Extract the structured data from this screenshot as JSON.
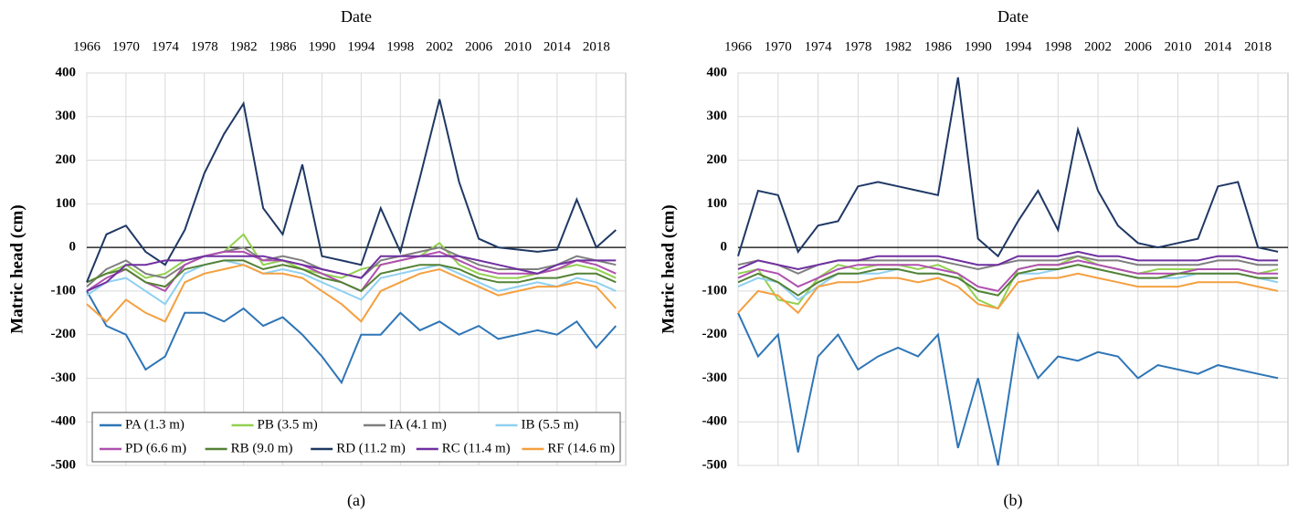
{
  "chart_data": [
    {
      "type": "line",
      "xlabel": "Date",
      "ylabel": "Matric head (cm)",
      "caption": "(a)",
      "legend": "lower center",
      "grid": true,
      "x": [
        1966,
        1968,
        1970,
        1972,
        1974,
        1976,
        1978,
        1980,
        1982,
        1984,
        1986,
        1988,
        1990,
        1992,
        1994,
        1996,
        1998,
        2000,
        2002,
        2004,
        2006,
        2008,
        2010,
        2012,
        2014,
        2016,
        2018,
        2020
      ],
      "xlim": [
        1966,
        2021
      ],
      "xticks": [
        1966,
        1970,
        1974,
        1978,
        1982,
        1986,
        1990,
        1994,
        1998,
        2002,
        2006,
        2010,
        2014,
        2018
      ],
      "ylim": [
        -500,
        400
      ],
      "yticks": [
        -500,
        -400,
        -300,
        -200,
        -100,
        0,
        100,
        200,
        300,
        400
      ],
      "series": [
        {
          "name": "PA (1.3 m)",
          "color": "#2e75b6",
          "values": [
            -100,
            -180,
            -200,
            -280,
            -250,
            -150,
            -150,
            -170,
            -140,
            -180,
            -160,
            -200,
            -250,
            -310,
            -200,
            -200,
            -150,
            -190,
            -170,
            -200,
            -180,
            -210,
            -200,
            -190,
            -200,
            -170,
            -230,
            -180
          ]
        },
        {
          "name": "PB (3.5 m)",
          "color": "#92d050",
          "values": [
            -80,
            -60,
            -40,
            -70,
            -60,
            -30,
            -20,
            -10,
            30,
            -40,
            -30,
            -50,
            -60,
            -70,
            -50,
            -40,
            -30,
            -20,
            10,
            -40,
            -60,
            -70,
            -70,
            -60,
            -50,
            -40,
            -50,
            -70
          ]
        },
        {
          "name": "IA (4.1 m)",
          "color": "#7f7f7f",
          "values": [
            -90,
            -50,
            -30,
            -60,
            -70,
            -40,
            -20,
            -10,
            0,
            -30,
            -20,
            -30,
            -50,
            -60,
            -70,
            -30,
            -20,
            -10,
            0,
            -20,
            -40,
            -50,
            -50,
            -50,
            -40,
            -20,
            -30,
            -40
          ]
        },
        {
          "name": "IB (5.5 m)",
          "color": "#8fd0f0",
          "values": [
            -110,
            -80,
            -70,
            -100,
            -130,
            -60,
            -40,
            -30,
            -40,
            -60,
            -50,
            -60,
            -80,
            -100,
            -120,
            -70,
            -60,
            -50,
            -40,
            -60,
            -80,
            -100,
            -90,
            -80,
            -90,
            -70,
            -80,
            -100
          ]
        },
        {
          "name": "PD (6.6 m)",
          "color": "#b050b0",
          "values": [
            -100,
            -70,
            -50,
            -80,
            -100,
            -40,
            -20,
            -10,
            -10,
            -30,
            -30,
            -40,
            -60,
            -80,
            -100,
            -40,
            -30,
            -20,
            -10,
            -30,
            -50,
            -60,
            -60,
            -60,
            -50,
            -30,
            -40,
            -60
          ]
        },
        {
          "name": "RB (9.0 m)",
          "color": "#548235",
          "values": [
            -80,
            -60,
            -50,
            -80,
            -90,
            -50,
            -40,
            -30,
            -30,
            -50,
            -40,
            -50,
            -70,
            -80,
            -100,
            -60,
            -50,
            -40,
            -40,
            -50,
            -70,
            -80,
            -80,
            -70,
            -70,
            -60,
            -60,
            -80
          ]
        },
        {
          "name": "RD (11.2 m)",
          "color": "#1f3864",
          "values": [
            -80,
            30,
            50,
            -10,
            -40,
            40,
            170,
            260,
            330,
            90,
            30,
            190,
            -20,
            -30,
            -40,
            90,
            -10,
            160,
            340,
            150,
            20,
            0,
            -5,
            -10,
            -5,
            110,
            0,
            40
          ]
        },
        {
          "name": "RC (11.4 m)",
          "color": "#7030a0",
          "values": [
            -100,
            -80,
            -40,
            -40,
            -30,
            -30,
            -20,
            -20,
            -20,
            -20,
            -30,
            -40,
            -50,
            -60,
            -70,
            -20,
            -20,
            -20,
            -20,
            -20,
            -30,
            -40,
            -50,
            -60,
            -40,
            -30,
            -30,
            -30
          ]
        },
        {
          "name": "RF (14.6 m)",
          "color": "#f4a040",
          "values": [
            -130,
            -170,
            -120,
            -150,
            -170,
            -80,
            -60,
            -50,
            -40,
            -60,
            -60,
            -70,
            -100,
            -130,
            -170,
            -100,
            -80,
            -60,
            -50,
            -70,
            -90,
            -110,
            -100,
            -90,
            -90,
            -80,
            -90,
            -140
          ]
        }
      ]
    },
    {
      "type": "line",
      "xlabel": "Date",
      "ylabel": "Matric head (cm)",
      "caption": "(b)",
      "grid": true,
      "x": [
        1966,
        1968,
        1970,
        1972,
        1974,
        1976,
        1978,
        1980,
        1982,
        1984,
        1986,
        1988,
        1990,
        1992,
        1994,
        1996,
        1998,
        2000,
        2002,
        2004,
        2006,
        2008,
        2010,
        2012,
        2014,
        2016,
        2018,
        2020
      ],
      "xlim": [
        1966,
        2021
      ],
      "xticks": [
        1966,
        1970,
        1974,
        1978,
        1982,
        1986,
        1990,
        1994,
        1998,
        2002,
        2006,
        2010,
        2014,
        2018
      ],
      "ylim": [
        -500,
        400
      ],
      "yticks": [
        -500,
        -400,
        -300,
        -200,
        -100,
        0,
        100,
        200,
        300,
        400
      ],
      "series": [
        {
          "color": "#2e75b6",
          "values": [
            -150,
            -250,
            -200,
            -470,
            -250,
            -200,
            -280,
            -250,
            -230,
            -250,
            -200,
            -460,
            -300,
            -500,
            -200,
            -300,
            -250,
            -260,
            -240,
            -250,
            -300,
            -270,
            -280,
            -290,
            -270,
            -280,
            -290,
            -300
          ]
        },
        {
          "color": "#92d050",
          "values": [
            -60,
            -50,
            -120,
            -130,
            -70,
            -40,
            -50,
            -40,
            -40,
            -50,
            -40,
            -60,
            -120,
            -140,
            -50,
            -40,
            -40,
            -20,
            -40,
            -50,
            -60,
            -50,
            -50,
            -50,
            -50,
            -50,
            -60,
            -50
          ]
        },
        {
          "color": "#7f7f7f",
          "values": [
            -40,
            -30,
            -40,
            -60,
            -40,
            -30,
            -30,
            -30,
            -30,
            -30,
            -30,
            -40,
            -50,
            -40,
            -30,
            -30,
            -30,
            -20,
            -30,
            -30,
            -40,
            -40,
            -40,
            -40,
            -30,
            -30,
            -40,
            -40
          ]
        },
        {
          "color": "#8fd0f0",
          "values": [
            -90,
            -70,
            -80,
            -120,
            -90,
            -60,
            -60,
            -60,
            -50,
            -60,
            -60,
            -70,
            -100,
            -110,
            -60,
            -60,
            -50,
            -40,
            -50,
            -60,
            -70,
            -70,
            -70,
            -60,
            -60,
            -60,
            -70,
            -80
          ]
        },
        {
          "color": "#b050b0",
          "values": [
            -70,
            -50,
            -60,
            -90,
            -70,
            -50,
            -40,
            -40,
            -40,
            -40,
            -50,
            -60,
            -90,
            -100,
            -50,
            -40,
            -40,
            -30,
            -40,
            -50,
            -60,
            -60,
            -60,
            -50,
            -50,
            -50,
            -60,
            -60
          ]
        },
        {
          "color": "#548235",
          "values": [
            -80,
            -60,
            -80,
            -110,
            -80,
            -60,
            -60,
            -50,
            -50,
            -60,
            -60,
            -70,
            -100,
            -110,
            -60,
            -50,
            -50,
            -40,
            -50,
            -60,
            -70,
            -70,
            -60,
            -60,
            -60,
            -60,
            -70,
            -70
          ]
        },
        {
          "color": "#1f3864",
          "values": [
            -20,
            130,
            120,
            -10,
            50,
            60,
            140,
            150,
            140,
            130,
            120,
            390,
            20,
            -20,
            60,
            130,
            40,
            270,
            130,
            50,
            10,
            0,
            10,
            20,
            140,
            150,
            0,
            -10
          ]
        },
        {
          "color": "#7030a0",
          "values": [
            -50,
            -30,
            -40,
            -50,
            -40,
            -30,
            -30,
            -20,
            -20,
            -20,
            -20,
            -30,
            -40,
            -40,
            -20,
            -20,
            -20,
            -10,
            -20,
            -20,
            -30,
            -30,
            -30,
            -30,
            -20,
            -20,
            -30,
            -30
          ]
        },
        {
          "color": "#f4a040",
          "values": [
            -150,
            -100,
            -110,
            -150,
            -90,
            -80,
            -80,
            -70,
            -70,
            -80,
            -70,
            -90,
            -130,
            -140,
            -80,
            -70,
            -70,
            -60,
            -70,
            -80,
            -90,
            -90,
            -90,
            -80,
            -80,
            -80,
            -90,
            -100
          ]
        }
      ]
    }
  ]
}
